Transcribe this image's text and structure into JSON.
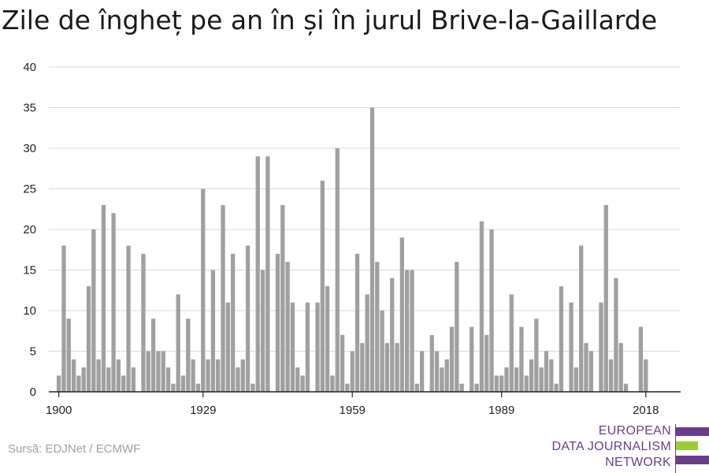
{
  "title": "Zile de îngheț pe an în și în jurul Brive-la-Gaillarde",
  "source": "Sursă: EDJNet / ECMWF",
  "logo": {
    "lines": [
      "EUROPEAN",
      "DATA JOURNALISM",
      "NETWORK"
    ],
    "colors": {
      "purple": "#6a3d8c",
      "green": "#9acd32"
    }
  },
  "chart_data": {
    "type": "bar",
    "title": "Zile de îngheț pe an în și în jurul Brive-la-Gaillarde",
    "xlabel": "",
    "ylabel": "",
    "ylim": [
      0,
      40
    ],
    "yticks": [
      0,
      5,
      10,
      15,
      20,
      25,
      30,
      35,
      40
    ],
    "xticks": [
      1900,
      1929,
      1959,
      1989,
      2018
    ],
    "grid": true,
    "bar_color": "#a0a0a0",
    "x": [
      1900,
      1901,
      1902,
      1903,
      1904,
      1905,
      1906,
      1907,
      1908,
      1909,
      1910,
      1911,
      1912,
      1913,
      1914,
      1915,
      1916,
      1917,
      1918,
      1919,
      1920,
      1921,
      1922,
      1923,
      1924,
      1925,
      1926,
      1927,
      1928,
      1929,
      1930,
      1931,
      1932,
      1933,
      1934,
      1935,
      1936,
      1937,
      1938,
      1939,
      1940,
      1941,
      1942,
      1943,
      1944,
      1945,
      1946,
      1947,
      1948,
      1949,
      1950,
      1951,
      1952,
      1953,
      1954,
      1955,
      1956,
      1957,
      1958,
      1959,
      1960,
      1961,
      1962,
      1963,
      1964,
      1965,
      1966,
      1967,
      1968,
      1969,
      1970,
      1971,
      1972,
      1973,
      1974,
      1975,
      1976,
      1977,
      1978,
      1979,
      1980,
      1981,
      1982,
      1983,
      1984,
      1985,
      1986,
      1987,
      1988,
      1989,
      1990,
      1991,
      1992,
      1993,
      1994,
      1995,
      1996,
      1997,
      1998,
      1999,
      2000,
      2001,
      2002,
      2003,
      2004,
      2005,
      2006,
      2007,
      2008,
      2009,
      2010,
      2011,
      2012,
      2013,
      2014,
      2015,
      2016,
      2017,
      2018
    ],
    "values": [
      2,
      18,
      9,
      4,
      2,
      3,
      13,
      20,
      4,
      23,
      3,
      22,
      4,
      2,
      18,
      3,
      0,
      17,
      5,
      9,
      5,
      5,
      3,
      1,
      12,
      2,
      9,
      4,
      1,
      25,
      4,
      15,
      4,
      23,
      11,
      17,
      3,
      4,
      18,
      1,
      29,
      15,
      29,
      0,
      17,
      23,
      16,
      11,
      3,
      2,
      11,
      0,
      11,
      26,
      13,
      2,
      30,
      7,
      1,
      5,
      17,
      6,
      12,
      35,
      16,
      10,
      6,
      14,
      6,
      19,
      15,
      15,
      1,
      5,
      0,
      7,
      5,
      3,
      4,
      8,
      16,
      1,
      0,
      8,
      1,
      21,
      7,
      20,
      2,
      2,
      3,
      12,
      3,
      8,
      2,
      4,
      9,
      3,
      5,
      4,
      1,
      13,
      0,
      11,
      3,
      18,
      6,
      5,
      0,
      11,
      23,
      4,
      14,
      6,
      1,
      0,
      0,
      8,
      4
    ]
  }
}
